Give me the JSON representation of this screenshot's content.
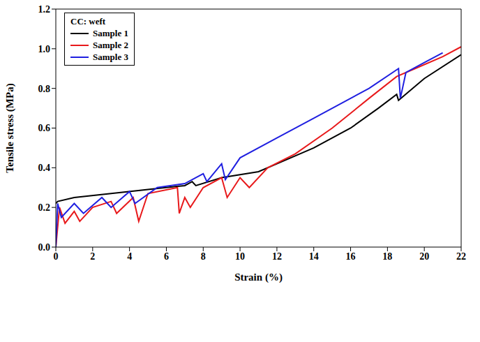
{
  "chart_data": {
    "type": "line",
    "legend_title": "CC: weft",
    "x_label": "Strain (%)",
    "y_label": "Tensile stress (MPa)",
    "xlim": [
      0,
      22
    ],
    "xticks": [
      0,
      2,
      4,
      6,
      8,
      10,
      12,
      14,
      16,
      18,
      20,
      22
    ],
    "ylim": [
      0,
      1.2
    ],
    "yticks": [
      {
        "value": 0,
        "label": "0.0"
      },
      0.2,
      0.4,
      0.6,
      0.8,
      {
        "value": 1,
        "label": "1.0"
      },
      1.2
    ],
    "grid": false,
    "legend": "upper left",
    "series": [
      {
        "name": "Sample 1",
        "color": "#000000",
        "x": [
          0,
          0.1,
          1,
          3,
          5,
          7,
          7.4,
          7.6,
          9,
          11,
          12,
          14,
          16,
          17.5,
          18.5,
          18.6,
          20,
          22
        ],
        "values": [
          0.22,
          0.23,
          0.25,
          0.27,
          0.29,
          0.31,
          0.33,
          0.31,
          0.35,
          0.38,
          0.42,
          0.5,
          0.6,
          0.7,
          0.77,
          0.74,
          0.85,
          0.97
        ]
      },
      {
        "name": "Sample 2",
        "color": "#e8191b",
        "x": [
          0,
          0.2,
          0.5,
          1,
          1.3,
          2,
          3,
          3.3,
          4.2,
          4.5,
          5,
          6.6,
          6.7,
          7,
          7.3,
          8,
          9,
          9.3,
          10,
          10.5,
          11.5,
          13,
          15,
          17,
          18.5,
          19.5,
          21,
          22
        ],
        "values": [
          0,
          0.2,
          0.12,
          0.18,
          0.13,
          0.2,
          0.23,
          0.17,
          0.25,
          0.13,
          0.27,
          0.3,
          0.17,
          0.25,
          0.2,
          0.3,
          0.35,
          0.25,
          0.35,
          0.3,
          0.4,
          0.47,
          0.6,
          0.75,
          0.86,
          0.9,
          0.96,
          1.01
        ]
      },
      {
        "name": "Sample 3",
        "color": "#1f1fe0",
        "x": [
          0,
          0.1,
          0.3,
          1,
          1.5,
          2.5,
          3,
          4,
          4.3,
          5.5,
          7,
          8,
          8.2,
          9,
          9.2,
          10,
          12,
          14,
          17,
          18.6,
          18.7,
          19,
          20,
          21
        ],
        "values": [
          0,
          0.22,
          0.15,
          0.22,
          0.17,
          0.25,
          0.2,
          0.28,
          0.22,
          0.3,
          0.32,
          0.37,
          0.33,
          0.42,
          0.34,
          0.45,
          0.55,
          0.65,
          0.8,
          0.9,
          0.75,
          0.88,
          0.93,
          0.98
        ]
      }
    ]
  }
}
